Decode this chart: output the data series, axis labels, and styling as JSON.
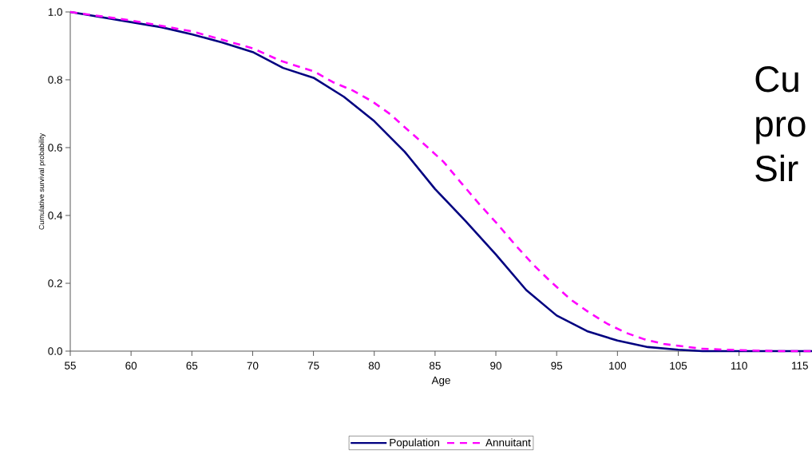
{
  "chart_data": {
    "type": "line",
    "xlabel": "Age",
    "ylabel": "Cumulative survival probability",
    "xlim": [
      55,
      116
    ],
    "ylim": [
      0,
      1
    ],
    "xticks": [
      55,
      60,
      65,
      70,
      75,
      80,
      85,
      90,
      95,
      100,
      105,
      110,
      115
    ],
    "yticks": [
      {
        "value": 0,
        "label": "0.0"
      },
      {
        "value": 0.2,
        "label": "0.2"
      },
      {
        "value": 0.4,
        "label": "0.4"
      },
      {
        "value": 0.6,
        "label": "0.6"
      },
      {
        "value": 0.8,
        "label": "0.8"
      },
      {
        "value": 1,
        "label": "1.0"
      }
    ],
    "legend": "bottom",
    "annotations": [
      "Cu",
      "pro",
      "Sir"
    ],
    "series": [
      {
        "name": "Population",
        "color": "#000080",
        "line_style": "solid",
        "x": [
          55,
          57.5,
          60,
          62.5,
          65,
          67.5,
          70,
          72.5,
          75,
          77.5,
          80,
          82.5,
          85,
          87.5,
          90,
          92.5,
          95,
          97.5,
          100,
          102.5,
          105,
          107,
          110,
          116
        ],
        "values": [
          1.0,
          0.985,
          0.97,
          0.955,
          0.934,
          0.91,
          0.882,
          0.835,
          0.806,
          0.75,
          0.678,
          0.588,
          0.478,
          0.384,
          0.285,
          0.18,
          0.105,
          0.059,
          0.031,
          0.012,
          0.004,
          0,
          0,
          0
        ]
      },
      {
        "name": "Annuitant",
        "color": "#ff00ff",
        "line_style": "dashed",
        "x": [
          55,
          60,
          65,
          70,
          72.3,
          75.1,
          76.6,
          78.2,
          79.8,
          81.3,
          82.7,
          84.2,
          85.7,
          87.2,
          88.6,
          90.1,
          91.6,
          93.1,
          94.6,
          96.2,
          97.7,
          99.2,
          100.7,
          102.2,
          103.8,
          105.4,
          106.9,
          110,
          113,
          116
        ],
        "values": [
          1.0,
          0.975,
          0.943,
          0.893,
          0.856,
          0.824,
          0.793,
          0.769,
          0.737,
          0.699,
          0.654,
          0.607,
          0.558,
          0.494,
          0.435,
          0.376,
          0.313,
          0.254,
          0.202,
          0.151,
          0.113,
          0.08,
          0.054,
          0.035,
          0.021,
          0.014,
          0.007,
          0.003,
          0,
          0
        ]
      }
    ]
  }
}
